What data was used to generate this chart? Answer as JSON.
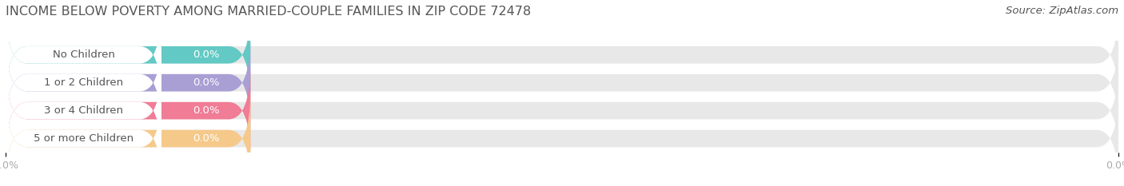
{
  "title": "INCOME BELOW POVERTY AMONG MARRIED-COUPLE FAMILIES IN ZIP CODE 72478",
  "source": "Source: ZipAtlas.com",
  "categories": [
    "No Children",
    "1 or 2 Children",
    "3 or 4 Children",
    "5 or more Children"
  ],
  "values": [
    0.0,
    0.0,
    0.0,
    0.0
  ],
  "bar_colors": [
    "#62c9c4",
    "#a99fd4",
    "#f07c96",
    "#f5c98a"
  ],
  "background_color": "#ffffff",
  "bar_background_color": "#e8e8e8",
  "title_fontsize": 11.5,
  "source_fontsize": 9.5,
  "label_fontsize": 9.5,
  "value_fontsize": 9.5,
  "tick_fontsize": 9,
  "tick_color": "#aaaaaa",
  "label_text_color": "#555555",
  "value_text_color": "#ffffff",
  "title_color": "#555555",
  "source_color": "#555555"
}
